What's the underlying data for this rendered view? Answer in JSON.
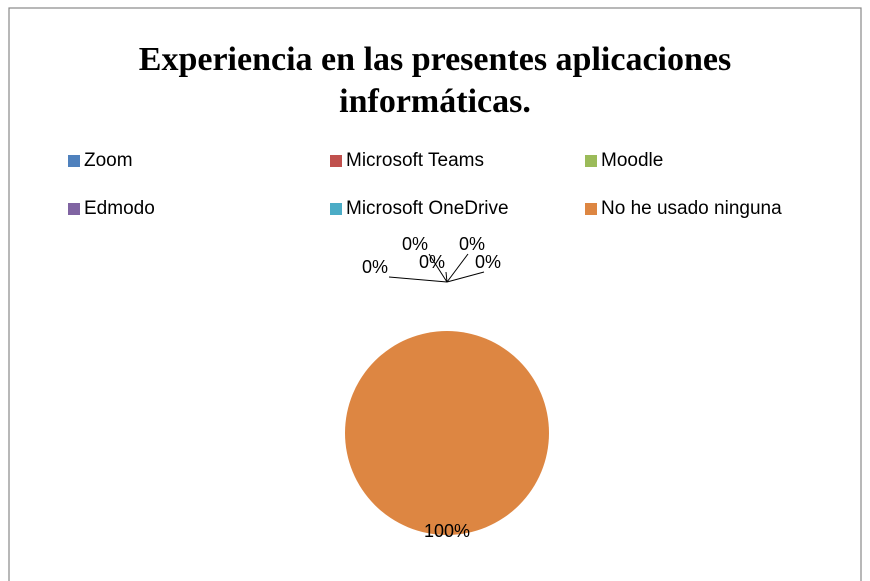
{
  "chart_data": {
    "type": "pie",
    "title_lines": [
      "Experiencia en las presentes aplicaciones",
      "informáticas."
    ],
    "categories": [
      "Zoom",
      "Microsoft Teams",
      "Moodle",
      "Edmodo",
      "Microsoft OneDrive",
      "No he usado ninguna"
    ],
    "values": [
      0,
      0,
      0,
      0,
      0,
      100
    ],
    "value_labels": [
      "0%",
      "0%",
      "0%",
      "0%",
      "0%",
      "100%"
    ],
    "colors": [
      "#4f81bd",
      "#c0504d",
      "#9bbb59",
      "#8064a2",
      "#4bacc6",
      "#dd8642"
    ]
  }
}
